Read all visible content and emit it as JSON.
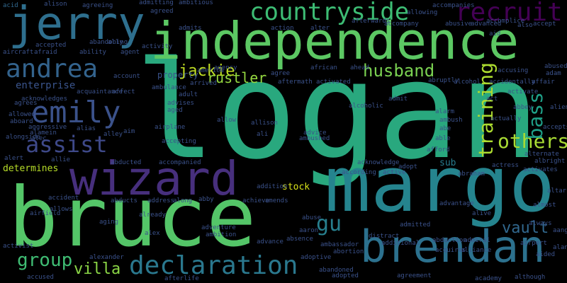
{
  "words": [
    {
      "text": "logan",
      "color": "#29a87e"
    },
    {
      "text": "margo",
      "color": "#25848e"
    },
    {
      "text": "bruce",
      "color": "#54c568"
    },
    {
      "text": "independence",
      "color": "#5cc863"
    },
    {
      "text": "jerry",
      "color": "#2e6f8e"
    },
    {
      "text": "wizard",
      "color": "#472f7d"
    },
    {
      "text": "brendan",
      "color": "#2c718e"
    },
    {
      "text": "declaration",
      "color": "#2a788e"
    },
    {
      "text": "countryside",
      "color": "#3dbc74"
    },
    {
      "text": "andrea",
      "color": "#33638d"
    },
    {
      "text": "emily",
      "color": "#3b528b"
    },
    {
      "text": "recruit",
      "color": "#440154"
    },
    {
      "text": "assist",
      "color": "#3e4989"
    },
    {
      "text": "husband",
      "color": "#7ad151"
    },
    {
      "text": "training",
      "color": "#addc30"
    },
    {
      "text": "others",
      "color": "#a8db34"
    },
    {
      "text": "bass",
      "color": "#1fa088"
    },
    {
      "text": "gu",
      "color": "#277f8e"
    },
    {
      "text": "jackie",
      "color": "#c2df23"
    },
    {
      "text": "vault",
      "color": "#31688e"
    },
    {
      "text": "rustler",
      "color": "#95d840"
    },
    {
      "text": "group",
      "color": "#3fbc73"
    },
    {
      "text": "villa",
      "color": "#8bd646"
    },
    {
      "text": "enterprise",
      "color": "#3a548c"
    },
    {
      "text": "property",
      "color": "#3a548c"
    },
    {
      "text": "determines",
      "color": "#b8de29"
    },
    {
      "text": "sub",
      "color": "#287c8e"
    },
    {
      "text": "stock",
      "color": "#d8e219"
    },
    {
      "text": "acid",
      "color": "#31688e"
    },
    {
      "text": "alison",
      "color": "#3b528b"
    },
    {
      "text": "agreeing",
      "color": "#3b528b"
    },
    {
      "text": "admitting",
      "color": "#3b528b"
    },
    {
      "text": "ambitious",
      "color": "#3b528b"
    },
    {
      "text": "accompanies",
      "color": "#3b528b"
    },
    {
      "text": "agreed",
      "color": "#3b528b"
    },
    {
      "text": "allowing",
      "color": "#3b528b"
    },
    {
      "text": "admits",
      "color": "#3b528b"
    },
    {
      "text": "alter",
      "color": "#3b528b"
    },
    {
      "text": "accompany",
      "color": "#3b528b"
    },
    {
      "text": "ally",
      "color": "#3b528b"
    },
    {
      "text": "abusive",
      "color": "#3b528b"
    },
    {
      "text": "advanced",
      "color": "#3b528b"
    },
    {
      "text": "accomplice",
      "color": "#3b528b"
    },
    {
      "text": "also",
      "color": "#3b528b"
    },
    {
      "text": "accept",
      "color": "#3b528b"
    },
    {
      "text": "action",
      "color": "#3b528b"
    },
    {
      "text": "afterwards",
      "color": "#3b528b"
    },
    {
      "text": "aid",
      "color": "#3b528b"
    },
    {
      "text": "accepted",
      "color": "#3b528b"
    },
    {
      "text": "abandoning",
      "color": "#3b528b"
    },
    {
      "text": "activity",
      "color": "#3b528b"
    },
    {
      "text": "aircraft",
      "color": "#3b528b"
    },
    {
      "text": "afraid",
      "color": "#3b528b"
    },
    {
      "text": "ability",
      "color": "#3b528b"
    },
    {
      "text": "agent",
      "color": "#3b528b"
    },
    {
      "text": "african",
      "color": "#3b528b"
    },
    {
      "text": "ahead",
      "color": "#3b528b"
    },
    {
      "text": "abused",
      "color": "#3b528b"
    },
    {
      "text": "agency",
      "color": "#3b528b"
    },
    {
      "text": "america",
      "color": "#3b528b"
    },
    {
      "text": "agree",
      "color": "#3b528b"
    },
    {
      "text": "adam",
      "color": "#3b528b"
    },
    {
      "text": "accusing",
      "color": "#3b528b"
    },
    {
      "text": "account",
      "color": "#3b528b"
    },
    {
      "text": "ambulance",
      "color": "#3b528b"
    },
    {
      "text": "aftermath",
      "color": "#3b528b"
    },
    {
      "text": "activated",
      "color": "#3b528b"
    },
    {
      "text": "abruptly",
      "color": "#3b528b"
    },
    {
      "text": "alcohol",
      "color": "#3b528b"
    },
    {
      "text": "accidentally",
      "color": "#3b528b"
    },
    {
      "text": "affair",
      "color": "#3b528b"
    },
    {
      "text": "activate",
      "color": "#3b528b"
    },
    {
      "text": "arrived",
      "color": "#3b528b"
    },
    {
      "text": "acknowledges",
      "color": "#3b528b"
    },
    {
      "text": "acquaintance",
      "color": "#3b528b"
    },
    {
      "text": "affect",
      "color": "#3b528b"
    },
    {
      "text": "adult",
      "color": "#3b528b"
    },
    {
      "text": "advises",
      "color": "#3b528b"
    },
    {
      "text": "admit",
      "color": "#3b528b"
    },
    {
      "text": "act",
      "color": "#3b528b"
    },
    {
      "text": "agrees",
      "color": "#3b528b"
    },
    {
      "text": "aged",
      "color": "#3b528b"
    },
    {
      "text": "alcoholic",
      "color": "#3b528b"
    },
    {
      "text": "alarm",
      "color": "#3b528b"
    },
    {
      "text": "abbey",
      "color": "#3b528b"
    },
    {
      "text": "alien",
      "color": "#3b528b"
    },
    {
      "text": "allowed",
      "color": "#3b528b"
    },
    {
      "text": "aboard",
      "color": "#3b528b"
    },
    {
      "text": "allow",
      "color": "#3b528b"
    },
    {
      "text": "allison",
      "color": "#3b528b"
    },
    {
      "text": "ambush",
      "color": "#3b528b"
    },
    {
      "text": "actually",
      "color": "#3b528b"
    },
    {
      "text": "aggressive",
      "color": "#3b528b"
    },
    {
      "text": "alias",
      "color": "#3b528b"
    },
    {
      "text": "aim",
      "color": "#3b528b"
    },
    {
      "text": "abe",
      "color": "#3b528b"
    },
    {
      "text": "accepts",
      "color": "#3b528b"
    },
    {
      "text": "alamein",
      "color": "#3b528b"
    },
    {
      "text": "alley",
      "color": "#3b528b"
    },
    {
      "text": "airplane",
      "color": "#3b528b"
    },
    {
      "text": "ali",
      "color": "#3b528b"
    },
    {
      "text": "advice",
      "color": "#3b528b"
    },
    {
      "text": "able",
      "color": "#3b528b"
    },
    {
      "text": "alongside",
      "color": "#3b528b"
    },
    {
      "text": "alec",
      "color": "#3b528b"
    },
    {
      "text": "accepting",
      "color": "#3b528b"
    },
    {
      "text": "ambushed",
      "color": "#3b528b"
    },
    {
      "text": "afford",
      "color": "#3b528b"
    },
    {
      "text": "alternate",
      "color": "#3b528b"
    },
    {
      "text": "albright",
      "color": "#3b528b"
    },
    {
      "text": "alert",
      "color": "#3b528b"
    },
    {
      "text": "allie",
      "color": "#3b528b"
    },
    {
      "text": "abducted",
      "color": "#3b528b"
    },
    {
      "text": "accompanied",
      "color": "#3b528b"
    },
    {
      "text": "acknowledge",
      "color": "#3b528b"
    },
    {
      "text": "adopt",
      "color": "#3b528b"
    },
    {
      "text": "actress",
      "color": "#3b528b"
    },
    {
      "text": "activates",
      "color": "#3b528b"
    },
    {
      "text": "according",
      "color": "#3b528b"
    },
    {
      "text": "active",
      "color": "#3b528b"
    },
    {
      "text": "abraham",
      "color": "#3b528b"
    },
    {
      "text": "addition",
      "color": "#3b528b"
    },
    {
      "text": "altar",
      "color": "#3b528b"
    },
    {
      "text": "accident",
      "color": "#3b528b"
    },
    {
      "text": "abducts",
      "color": "#3b528b"
    },
    {
      "text": "address",
      "color": "#3b528b"
    },
    {
      "text": "along",
      "color": "#3b528b"
    },
    {
      "text": "abby",
      "color": "#3b528b"
    },
    {
      "text": "achieve",
      "color": "#3b528b"
    },
    {
      "text": "amends",
      "color": "#3b528b"
    },
    {
      "text": "advantage",
      "color": "#3b528b"
    },
    {
      "text": "almost",
      "color": "#3b528b"
    },
    {
      "text": "allows",
      "color": "#3b528b"
    },
    {
      "text": "aging",
      "color": "#3b528b"
    },
    {
      "text": "already",
      "color": "#3b528b"
    },
    {
      "text": "adventure",
      "color": "#3b528b"
    },
    {
      "text": "abuse",
      "color": "#3b528b"
    },
    {
      "text": "alive",
      "color": "#3b528b"
    },
    {
      "text": "always",
      "color": "#3b528b"
    },
    {
      "text": "airfield",
      "color": "#3b528b"
    },
    {
      "text": "ambition",
      "color": "#3b528b"
    },
    {
      "text": "admitted",
      "color": "#3b528b"
    },
    {
      "text": "aang",
      "color": "#3b528b"
    },
    {
      "text": "alex",
      "color": "#3b528b"
    },
    {
      "text": "aaron",
      "color": "#3b528b"
    },
    {
      "text": "distract",
      "color": "#3b528b"
    },
    {
      "text": "abduction",
      "color": "#3b528b"
    },
    {
      "text": "admiral",
      "color": "#3b528b"
    },
    {
      "text": "airport",
      "color": "#3b528b"
    },
    {
      "text": "alan",
      "color": "#3b528b"
    },
    {
      "text": "advance",
      "color": "#3b528b"
    },
    {
      "text": "absence",
      "color": "#3b528b"
    },
    {
      "text": "ambassador",
      "color": "#3b528b"
    },
    {
      "text": "additional",
      "color": "#3b528b"
    },
    {
      "text": "acquires",
      "color": "#3b528b"
    },
    {
      "text": "alliance",
      "color": "#3b528b"
    },
    {
      "text": "aided",
      "color": "#3b528b"
    },
    {
      "text": "alexander",
      "color": "#3b528b"
    },
    {
      "text": "adoptive",
      "color": "#3b528b"
    },
    {
      "text": "abortion",
      "color": "#3b528b"
    },
    {
      "text": "activist",
      "color": "#3b528b"
    },
    {
      "text": "abandoned",
      "color": "#3b528b"
    },
    {
      "text": "adopted",
      "color": "#3b528b"
    },
    {
      "text": "accused",
      "color": "#3b528b"
    },
    {
      "text": "afterlife",
      "color": "#3b528b"
    },
    {
      "text": "academy",
      "color": "#3b528b"
    },
    {
      "text": "although",
      "color": "#3b528b"
    },
    {
      "text": "agreement",
      "color": "#3b528b"
    }
  ]
}
